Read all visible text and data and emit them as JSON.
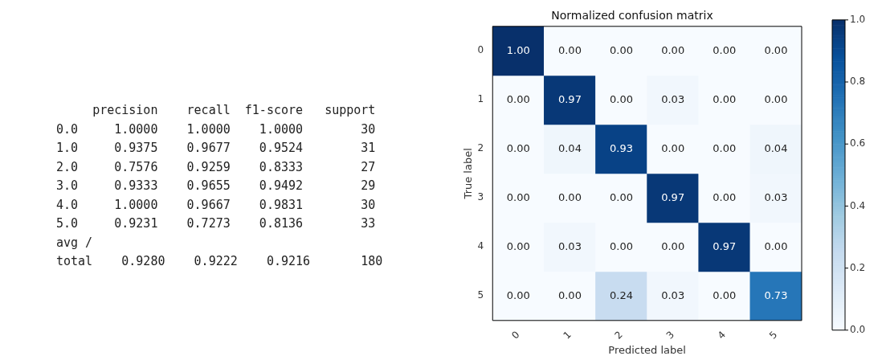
{
  "chart_data": [
    {
      "type": "other",
      "annotations": [
        "     precision    recall  f1-score   support",
        "0.0     1.0000    1.0000    1.0000        30",
        "1.0     0.9375    0.9677    0.9524        31",
        "2.0     0.7576    0.9259    0.8333        27",
        "3.0     0.9333    0.9655    0.9492        29",
        "4.0     1.0000    0.9667    0.9831        30",
        "5.0     0.9231    0.7273    0.8136        33",
        "avg /",
        "total    0.9280    0.9222    0.9216       180"
      ]
    },
    {
      "type": "heatmap",
      "title": "Normalized confusion matrix",
      "xlabel": "Predicted label",
      "ylabel": "True label",
      "categories": [
        "0",
        "1",
        "2",
        "3",
        "4",
        "5"
      ],
      "y_categories": [
        "0",
        "1",
        "2",
        "3",
        "4",
        "5"
      ],
      "cells": [
        [
          1.0,
          0.0,
          0.0,
          0.0,
          0.0,
          0.0
        ],
        [
          0.0,
          0.97,
          0.0,
          0.03,
          0.0,
          0.0
        ],
        [
          0.0,
          0.04,
          0.93,
          0.0,
          0.0,
          0.04
        ],
        [
          0.0,
          0.0,
          0.0,
          0.97,
          0.0,
          0.03
        ],
        [
          0.0,
          0.03,
          0.0,
          0.0,
          0.97,
          0.0
        ],
        [
          0.0,
          0.0,
          0.24,
          0.03,
          0.0,
          0.73
        ]
      ],
      "cell_labels": [
        [
          "1.00",
          "0.00",
          "0.00",
          "0.00",
          "0.00",
          "0.00"
        ],
        [
          "0.00",
          "0.97",
          "0.00",
          "0.03",
          "0.00",
          "0.00"
        ],
        [
          "0.00",
          "0.04",
          "0.93",
          "0.00",
          "0.00",
          "0.04"
        ],
        [
          "0.00",
          "0.00",
          "0.00",
          "0.97",
          "0.00",
          "0.03"
        ],
        [
          "0.00",
          "0.03",
          "0.00",
          "0.00",
          "0.97",
          "0.00"
        ],
        [
          "0.00",
          "0.00",
          "0.24",
          "0.03",
          "0.00",
          "0.73"
        ]
      ],
      "clim": [
        0,
        1
      ],
      "cticks": [
        {
          "value": 0,
          "label": "0.0"
        },
        {
          "value": 0.2,
          "label": "0.2"
        },
        {
          "value": 0.4,
          "label": "0.4"
        },
        {
          "value": 0.6,
          "label": "0.6"
        },
        {
          "value": 0.8,
          "label": "0.8"
        },
        {
          "value": 1,
          "label": "1.0"
        }
      ]
    }
  ]
}
